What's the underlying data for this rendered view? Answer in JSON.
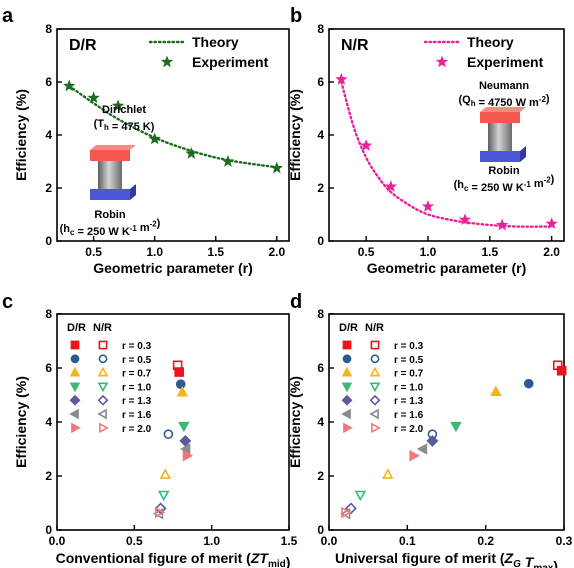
{
  "colors": {
    "dr_theory": "#1f6b1f",
    "nr_theory": "#e8239a",
    "r03": "#e8161b",
    "r05": "#2e5b8f",
    "r07": "#f5b21c",
    "r10": "#3cb878",
    "r13": "#5b5a9e",
    "r16": "#8c8c8c",
    "r20": "#f07878",
    "hot_block": "#f4574d",
    "cold_block": "#4b57d6",
    "cylinder": "#9a9a9a"
  },
  "chart_data": [
    {
      "id": "a",
      "type": "line",
      "panel_letter": "a",
      "title": "D/R",
      "xlabel": "Geometric parameter (r)",
      "ylabel": "Efficiency (%)",
      "xlim": [
        0.2,
        2.1
      ],
      "ylim": [
        0,
        8
      ],
      "xticks": [
        0.5,
        1.0,
        1.5,
        2.0
      ],
      "xtick_labels": [
        "0.5",
        "1.0",
        "1.5",
        "2.0"
      ],
      "yticks": [
        0,
        2,
        4,
        6,
        8
      ],
      "ytick_labels": [
        "0",
        "2",
        "4",
        "6",
        "8"
      ],
      "legend_position": "top-right",
      "series": [
        {
          "name": "Theory",
          "kind": "dotted-line",
          "x": [
            0.3,
            0.5,
            0.7,
            1.0,
            1.3,
            1.6,
            2.0
          ],
          "y": [
            5.85,
            5.2,
            4.6,
            3.9,
            3.4,
            3.05,
            2.78
          ]
        },
        {
          "name": "Experiment",
          "kind": "star",
          "x": [
            0.3,
            0.5,
            0.7,
            1.0,
            1.3,
            1.6,
            2.0
          ],
          "y": [
            5.85,
            5.4,
            5.1,
            3.85,
            3.3,
            3.0,
            2.75
          ]
        }
      ],
      "annotations": {
        "top_label": "Dirichlet",
        "top_value": "(T_h = 475 K)",
        "bottom_label": "Robin",
        "bottom_value": "(h_c = 250 W K⁻¹ m⁻²)"
      }
    },
    {
      "id": "b",
      "type": "line",
      "panel_letter": "b",
      "title": "N/R",
      "xlabel": "Geometric parameter (r)",
      "ylabel": "Efficiency (%)",
      "xlim": [
        0.2,
        2.1
      ],
      "ylim": [
        0,
        8
      ],
      "xticks": [
        0.5,
        1.0,
        1.5,
        2.0
      ],
      "xtick_labels": [
        "0.5",
        "1.0",
        "1.5",
        "2.0"
      ],
      "yticks": [
        0,
        2,
        4,
        6,
        8
      ],
      "ytick_labels": [
        "0",
        "2",
        "4",
        "6",
        "8"
      ],
      "legend_position": "top-right",
      "series": [
        {
          "name": "Theory",
          "kind": "dotted-line",
          "x": [
            0.3,
            0.4,
            0.5,
            0.6,
            0.7,
            0.85,
            1.0,
            1.2,
            1.4,
            1.6,
            1.8,
            2.0
          ],
          "y": [
            6.0,
            4.3,
            3.15,
            2.4,
            1.85,
            1.35,
            1.0,
            0.78,
            0.65,
            0.57,
            0.54,
            0.55
          ]
        },
        {
          "name": "Experiment",
          "kind": "star",
          "x": [
            0.3,
            0.5,
            0.7,
            1.0,
            1.3,
            1.6,
            2.0
          ],
          "y": [
            6.1,
            3.6,
            2.05,
            1.3,
            0.8,
            0.6,
            0.65
          ]
        }
      ],
      "annotations": {
        "top_label": "Neumann",
        "top_value": "(Q_h = 4750 W m⁻²)",
        "bottom_label": "Robin",
        "bottom_value": "(h_c = 250 W K⁻¹ m⁻²)"
      }
    },
    {
      "id": "c",
      "type": "scatter",
      "panel_letter": "c",
      "xlabel": "Conventional figure of merit (ZT_mid)",
      "ylabel": "Efficiency (%)",
      "xlim": [
        0.0,
        1.5
      ],
      "ylim": [
        0,
        8
      ],
      "xticks": [
        0.0,
        0.5,
        1.0,
        1.5
      ],
      "xtick_labels": [
        "0.0",
        "0.5",
        "1.0",
        "1.5"
      ],
      "yticks": [
        0,
        2,
        4,
        6,
        8
      ],
      "ytick_labels": [
        "0",
        "2",
        "4",
        "6",
        "8"
      ],
      "legend_position": "top-left",
      "legend_header": [
        "D/R",
        "N/R"
      ],
      "legend_labels": [
        "r = 0.3",
        "r = 0.5",
        "r = 0.7",
        "r = 1.0",
        "r = 1.3",
        "r = 1.6",
        "r = 2.0"
      ],
      "points_dr": [
        {
          "x": 0.79,
          "y": 5.85
        },
        {
          "x": 0.8,
          "y": 5.4
        },
        {
          "x": 0.81,
          "y": 5.1
        },
        {
          "x": 0.82,
          "y": 3.85
        },
        {
          "x": 0.83,
          "y": 3.3
        },
        {
          "x": 0.835,
          "y": 3.0
        },
        {
          "x": 0.84,
          "y": 2.75
        }
      ],
      "points_nr": [
        {
          "x": 0.78,
          "y": 6.1
        },
        {
          "x": 0.72,
          "y": 3.55
        },
        {
          "x": 0.7,
          "y": 2.05
        },
        {
          "x": 0.69,
          "y": 1.3
        },
        {
          "x": 0.67,
          "y": 0.8
        },
        {
          "x": 0.66,
          "y": 0.6
        },
        {
          "x": 0.66,
          "y": 0.65
        }
      ]
    },
    {
      "id": "d",
      "type": "scatter",
      "panel_letter": "d",
      "xlabel": "Universal figure of merit (Z_G T_max)",
      "ylabel": "Efficiency (%)",
      "xlim": [
        0.0,
        0.3
      ],
      "ylim": [
        0,
        8
      ],
      "xticks": [
        0.0,
        0.1,
        0.2,
        0.3
      ],
      "xtick_labels": [
        "0.0",
        "0.1",
        "0.2",
        "0.3"
      ],
      "yticks": [
        0,
        2,
        4,
        6,
        8
      ],
      "ytick_labels": [
        "0",
        "2",
        "4",
        "6",
        "8"
      ],
      "legend_position": "top-left",
      "legend_header": [
        "D/R",
        "N/R"
      ],
      "legend_labels": [
        "r = 0.3",
        "r = 0.5",
        "r = 0.7",
        "r = 1.0",
        "r = 1.3",
        "r = 1.6",
        "r = 2.0"
      ],
      "points_dr": [
        {
          "x": 0.297,
          "y": 5.9
        },
        {
          "x": 0.255,
          "y": 5.42
        },
        {
          "x": 0.213,
          "y": 5.12
        },
        {
          "x": 0.162,
          "y": 3.85
        },
        {
          "x": 0.132,
          "y": 3.3
        },
        {
          "x": 0.12,
          "y": 3.0
        },
        {
          "x": 0.108,
          "y": 2.75
        }
      ],
      "points_nr": [
        {
          "x": 0.292,
          "y": 6.1
        },
        {
          "x": 0.132,
          "y": 3.55
        },
        {
          "x": 0.075,
          "y": 2.05
        },
        {
          "x": 0.04,
          "y": 1.3
        },
        {
          "x": 0.028,
          "y": 0.8
        },
        {
          "x": 0.022,
          "y": 0.6
        },
        {
          "x": 0.021,
          "y": 0.65
        }
      ]
    }
  ]
}
